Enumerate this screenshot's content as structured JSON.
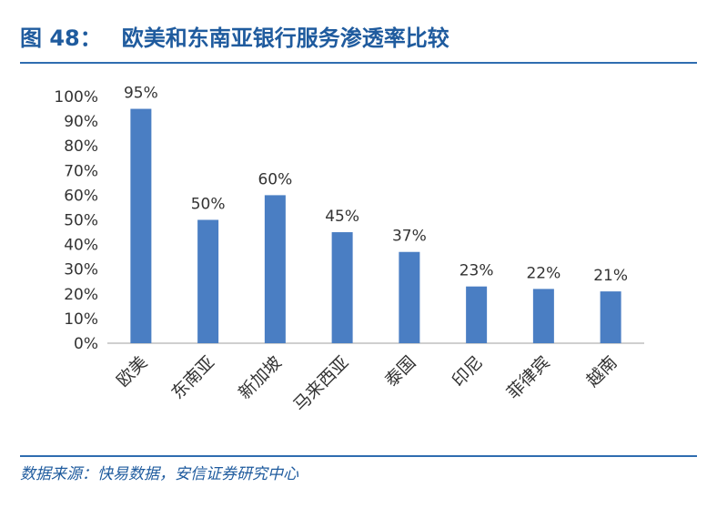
{
  "figure": {
    "number": "图 48：",
    "title": "欧美和东南亚银行服务渗透率比较",
    "source": "数据来源：快易数据，安信证券研究中心"
  },
  "colors": {
    "bar": "#4a7ec3",
    "title": "#1f5b9e",
    "rule": "#2f6db0",
    "axis_text": "#333333",
    "axis_line": "#bfbfbf"
  },
  "chart_data": {
    "type": "bar",
    "categories": [
      "欧美",
      "东南亚",
      "新加坡",
      "马来西亚",
      "泰国",
      "印尼",
      "菲律宾",
      "越南"
    ],
    "values": [
      95,
      50,
      60,
      45,
      37,
      23,
      22,
      21
    ],
    "data_labels": [
      "95%",
      "50%",
      "60%",
      "45%",
      "37%",
      "23%",
      "22%",
      "21%"
    ],
    "y_ticks": [
      "0%",
      "10%",
      "20%",
      "30%",
      "40%",
      "50%",
      "60%",
      "70%",
      "80%",
      "90%",
      "100%"
    ],
    "ylim": [
      0,
      100
    ],
    "value_unit": "%",
    "grid": false,
    "legend": false
  }
}
